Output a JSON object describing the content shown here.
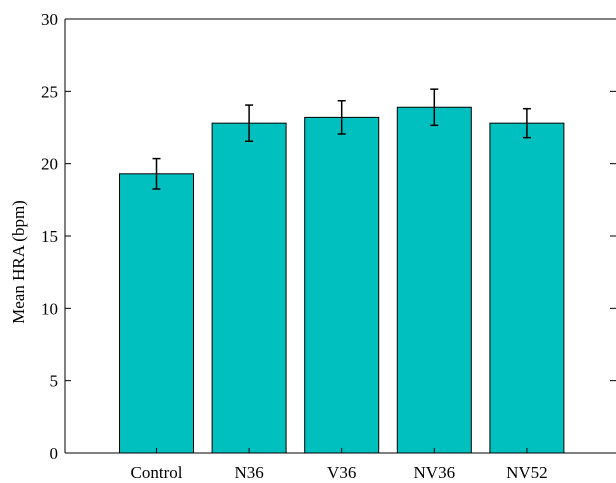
{
  "chart_data": {
    "type": "bar",
    "title": "",
    "xlabel": "",
    "ylabel": "Mean HRA (bpm)",
    "ylim": [
      0,
      30
    ],
    "yticks": [
      0,
      5,
      10,
      15,
      20,
      25,
      30
    ],
    "grid": false,
    "categories": [
      "Control",
      "N36",
      "V36",
      "NV36",
      "NV52"
    ],
    "values": [
      19.3,
      22.8,
      23.2,
      23.9,
      22.8
    ],
    "error": [
      1.05,
      1.25,
      1.15,
      1.25,
      1.0
    ],
    "bar_color": "#00bfbf"
  }
}
